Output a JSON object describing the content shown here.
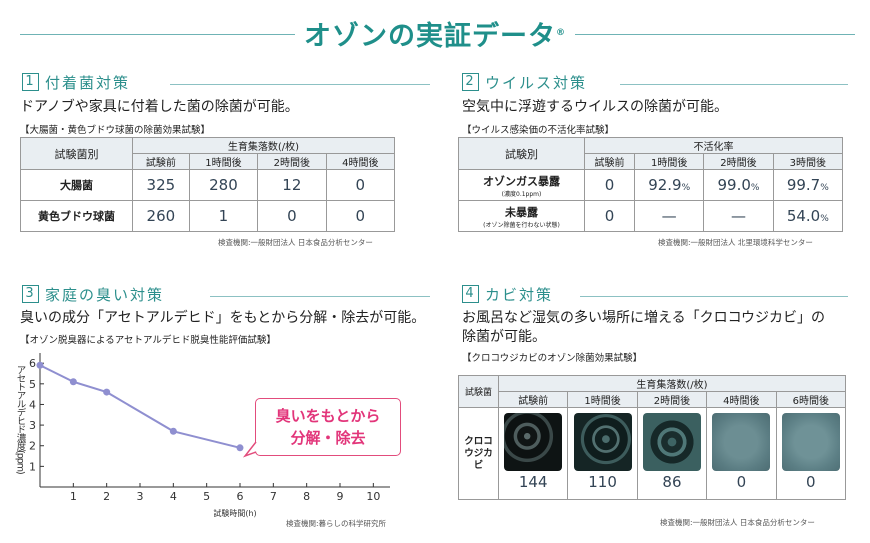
{
  "title": "オゾンの実証データ",
  "title_mark": "®",
  "s1": {
    "num": "1",
    "heading": "付着菌対策",
    "desc": "ドアノブや家具に付着した菌の除菌が可能。",
    "test": "【大腸菌・黄色ブドウ球菌の除菌効果試験】",
    "col_label": "試験菌別",
    "group_header": "生育集落数(/枚)",
    "cols": [
      "試験前",
      "1時間後",
      "2時間後",
      "4時間後"
    ],
    "rows": [
      {
        "label": "大腸菌",
        "values": [
          "325",
          "280",
          "12",
          "0"
        ]
      },
      {
        "label": "黄色ブドウ球菌",
        "values": [
          "260",
          "1",
          "0",
          "0"
        ]
      }
    ],
    "note": "検査機関:一般財団法人 日本食品分析センター"
  },
  "s2": {
    "num": "2",
    "heading": "ウイルス対策",
    "desc": "空気中に浮遊するウイルスの除菌が可能。",
    "test": "【ウイルス感染価の不活化率試験】",
    "col_label": "試験別",
    "group_header": "不活化率",
    "cols": [
      "試験前",
      "1時間後",
      "2時間後",
      "3時間後"
    ],
    "rows": [
      {
        "label": "オゾンガス暴露",
        "sublabel": "(濃度0.1ppm)",
        "values": [
          "0",
          "92.9",
          "99.0",
          "99.7"
        ],
        "units": [
          "",
          "%",
          "%",
          "%"
        ]
      },
      {
        "label": "未暴露",
        "sublabel": "(オゾン除菌を行わない状態)",
        "values": [
          "0",
          "—",
          "—",
          "54.0"
        ],
        "units": [
          "",
          "",
          "",
          "%"
        ]
      }
    ],
    "note": "検査機関:一般財団法人 北里環境科学センター"
  },
  "s3": {
    "num": "3",
    "heading": "家庭の臭い対策",
    "desc": "臭いの成分「アセトアルデヒド」をもとから分解・除去が可能。",
    "test": "【オゾン脱臭器によるアセトアルデヒド脱臭性能評価試験】",
    "callout_line1": "臭いをもとから",
    "callout_line2": "分解・除去",
    "note": "検査機関:暮らしの科学研究所"
  },
  "chart_data": {
    "type": "line",
    "xlabel": "試験時間(h)",
    "ylabel": "アセトアルデヒド濃度(ppm)",
    "x_ticks": [
      1,
      2,
      3,
      4,
      5,
      6,
      7,
      8,
      9,
      10
    ],
    "y_ticks": [
      1,
      2,
      3,
      4,
      5,
      6
    ],
    "xlim": [
      0,
      10.5
    ],
    "ylim": [
      0,
      6.3
    ],
    "series": [
      {
        "x": [
          0,
          1,
          2,
          4,
          6
        ],
        "y": [
          5.9,
          5.1,
          4.6,
          2.7,
          1.9
        ],
        "color": "#8f8fd0"
      }
    ]
  },
  "s4": {
    "num": "4",
    "heading": "カビ対策",
    "desc1": "お風呂など湿気の多い場所に増える「クロコウジカビ」の",
    "desc2": "除菌が可能。",
    "test": "【クロコウジカビのオゾン除菌効果試験】",
    "col_label": "試験菌",
    "group_header": "生育集落数(/枚)",
    "cols": [
      "試験前",
      "1時間後",
      "2時間後",
      "4時間後",
      "6時間後"
    ],
    "row_label": "クロコウジカビ",
    "values": [
      "144",
      "110",
      "86",
      "0",
      "0"
    ],
    "note": "検査機関:一般財団法人 日本食品分析センター"
  }
}
